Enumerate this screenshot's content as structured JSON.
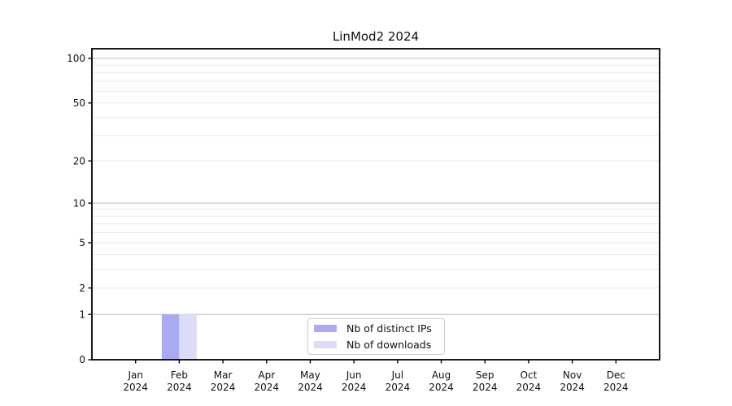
{
  "title": "LinMod2 2024",
  "chart_data": {
    "type": "bar",
    "title": "LinMod2 2024",
    "categories": [
      "Jan 2024",
      "Feb 2024",
      "Mar 2024",
      "Apr 2024",
      "May 2024",
      "Jun 2024",
      "Jul 2024",
      "Aug 2024",
      "Sep 2024",
      "Oct 2024",
      "Nov 2024",
      "Dec 2024"
    ],
    "series": [
      {
        "name": "Nb of distinct IPs",
        "color": "#a9a9f4",
        "values": [
          0,
          1,
          0,
          0,
          0,
          0,
          0,
          0,
          0,
          0,
          0,
          0
        ]
      },
      {
        "name": "Nb of downloads",
        "color": "#dcdcf9",
        "values": [
          0,
          1,
          0,
          0,
          0,
          0,
          0,
          0,
          0,
          0,
          0,
          0
        ]
      }
    ],
    "xlabel": "",
    "ylabel": "",
    "yscale": "log1p",
    "ylim": [
      0,
      116
    ],
    "y_ticks": [
      0,
      1,
      2,
      5,
      10,
      20,
      50,
      100
    ],
    "y_major_gridlines": [
      1,
      10,
      100
    ],
    "y_minor_gridlines": [
      2,
      3,
      4,
      5,
      6,
      7,
      8,
      9,
      20,
      30,
      40,
      50,
      60,
      70,
      80,
      90
    ],
    "grid": true,
    "legend_position": "lower center"
  },
  "colors": {
    "background": "#ffffff",
    "spine": "#000000",
    "major_grid": "#c8c8c8",
    "minor_grid": "#eaeaea",
    "tick": "#000000",
    "text": "#111111",
    "legend_border": "#cccccc"
  }
}
